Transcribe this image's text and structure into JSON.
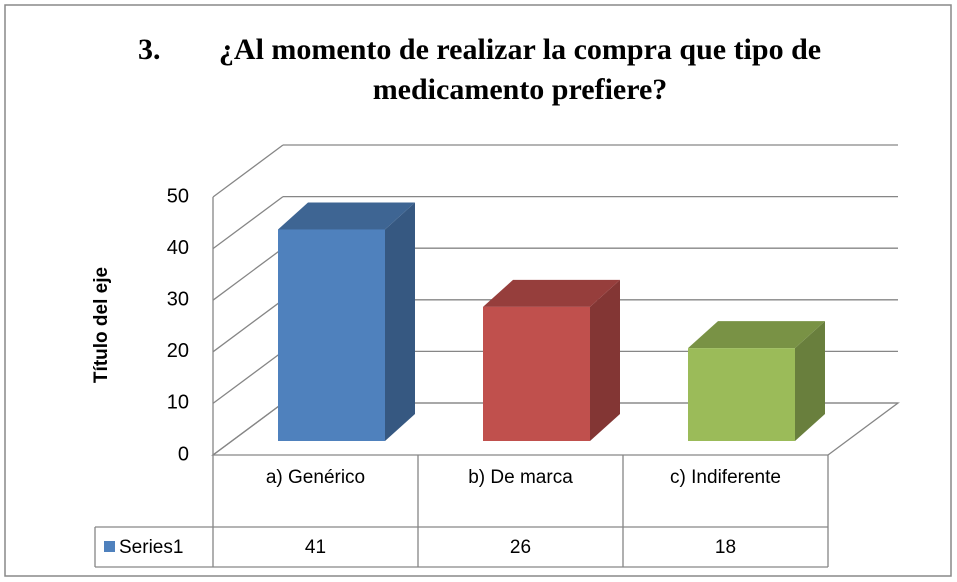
{
  "chart_data": {
    "type": "bar3d",
    "number": "3.",
    "title": "¿Al momento de realizar la compra que tipo de medicamento prefiere?",
    "y_label": "Título del eje",
    "categories": [
      "a) Genérico",
      "b) De marca",
      "c) Indiferente"
    ],
    "series": [
      {
        "name": "Series1",
        "color": "#4f81bd",
        "values": [
          41,
          26,
          18
        ]
      }
    ],
    "point_colors": [
      "#4f81bd",
      "#c0504d",
      "#9bbb59"
    ],
    "ylim": [
      0,
      50
    ],
    "yticks": [
      0,
      10,
      20,
      30,
      40,
      50
    ],
    "grid": true,
    "data_table": true
  }
}
